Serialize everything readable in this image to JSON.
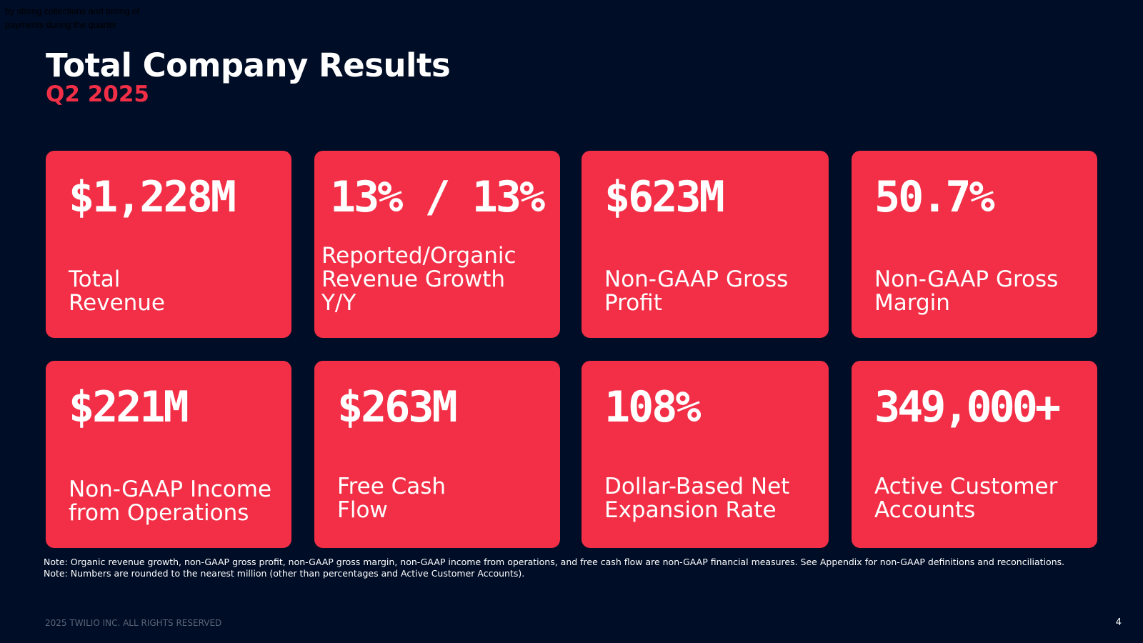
{
  "stray_note": "by strong collections and timing of payments during the quarter",
  "title": "Total Company Results",
  "subtitle": "Q2 2025",
  "cards": [
    {
      "metric": "$1,228M",
      "label": "Total\nRevenue"
    },
    {
      "metric": "13% / 13%",
      "label": "Reported/Organic\nRevenue Growth Y/Y"
    },
    {
      "metric": "$623M",
      "label": "Non-GAAP Gross\nProfit"
    },
    {
      "metric": "50.7%",
      "label": "Non-GAAP Gross\nMargin"
    },
    {
      "metric": "$221M",
      "label": "Non-GAAP Income\nfrom Operations"
    },
    {
      "metric": "$263M",
      "label": "Free Cash\nFlow"
    },
    {
      "metric": "108%",
      "label": "Dollar-Based Net\nExpansion Rate"
    },
    {
      "metric": "349,000+",
      "label": "Active Customer\nAccounts"
    }
  ],
  "footnotes": [
    "Note: Organic revenue growth, non-GAAP gross profit, non-GAAP gross margin, non-GAAP income from operations, and free cash flow are non-GAAP financial measures. See Appendix for non-GAAP definitions and reconciliations.",
    "Note: Numbers are rounded to the nearest million (other than percentages and Active Customer Accounts)."
  ],
  "copyright": "2025 TWILIO INC. ALL RIGHTS RESERVED",
  "page_number": "4",
  "colors": {
    "background": "#000D26",
    "accent": "#F22F46",
    "text": "#FFFFFF"
  }
}
